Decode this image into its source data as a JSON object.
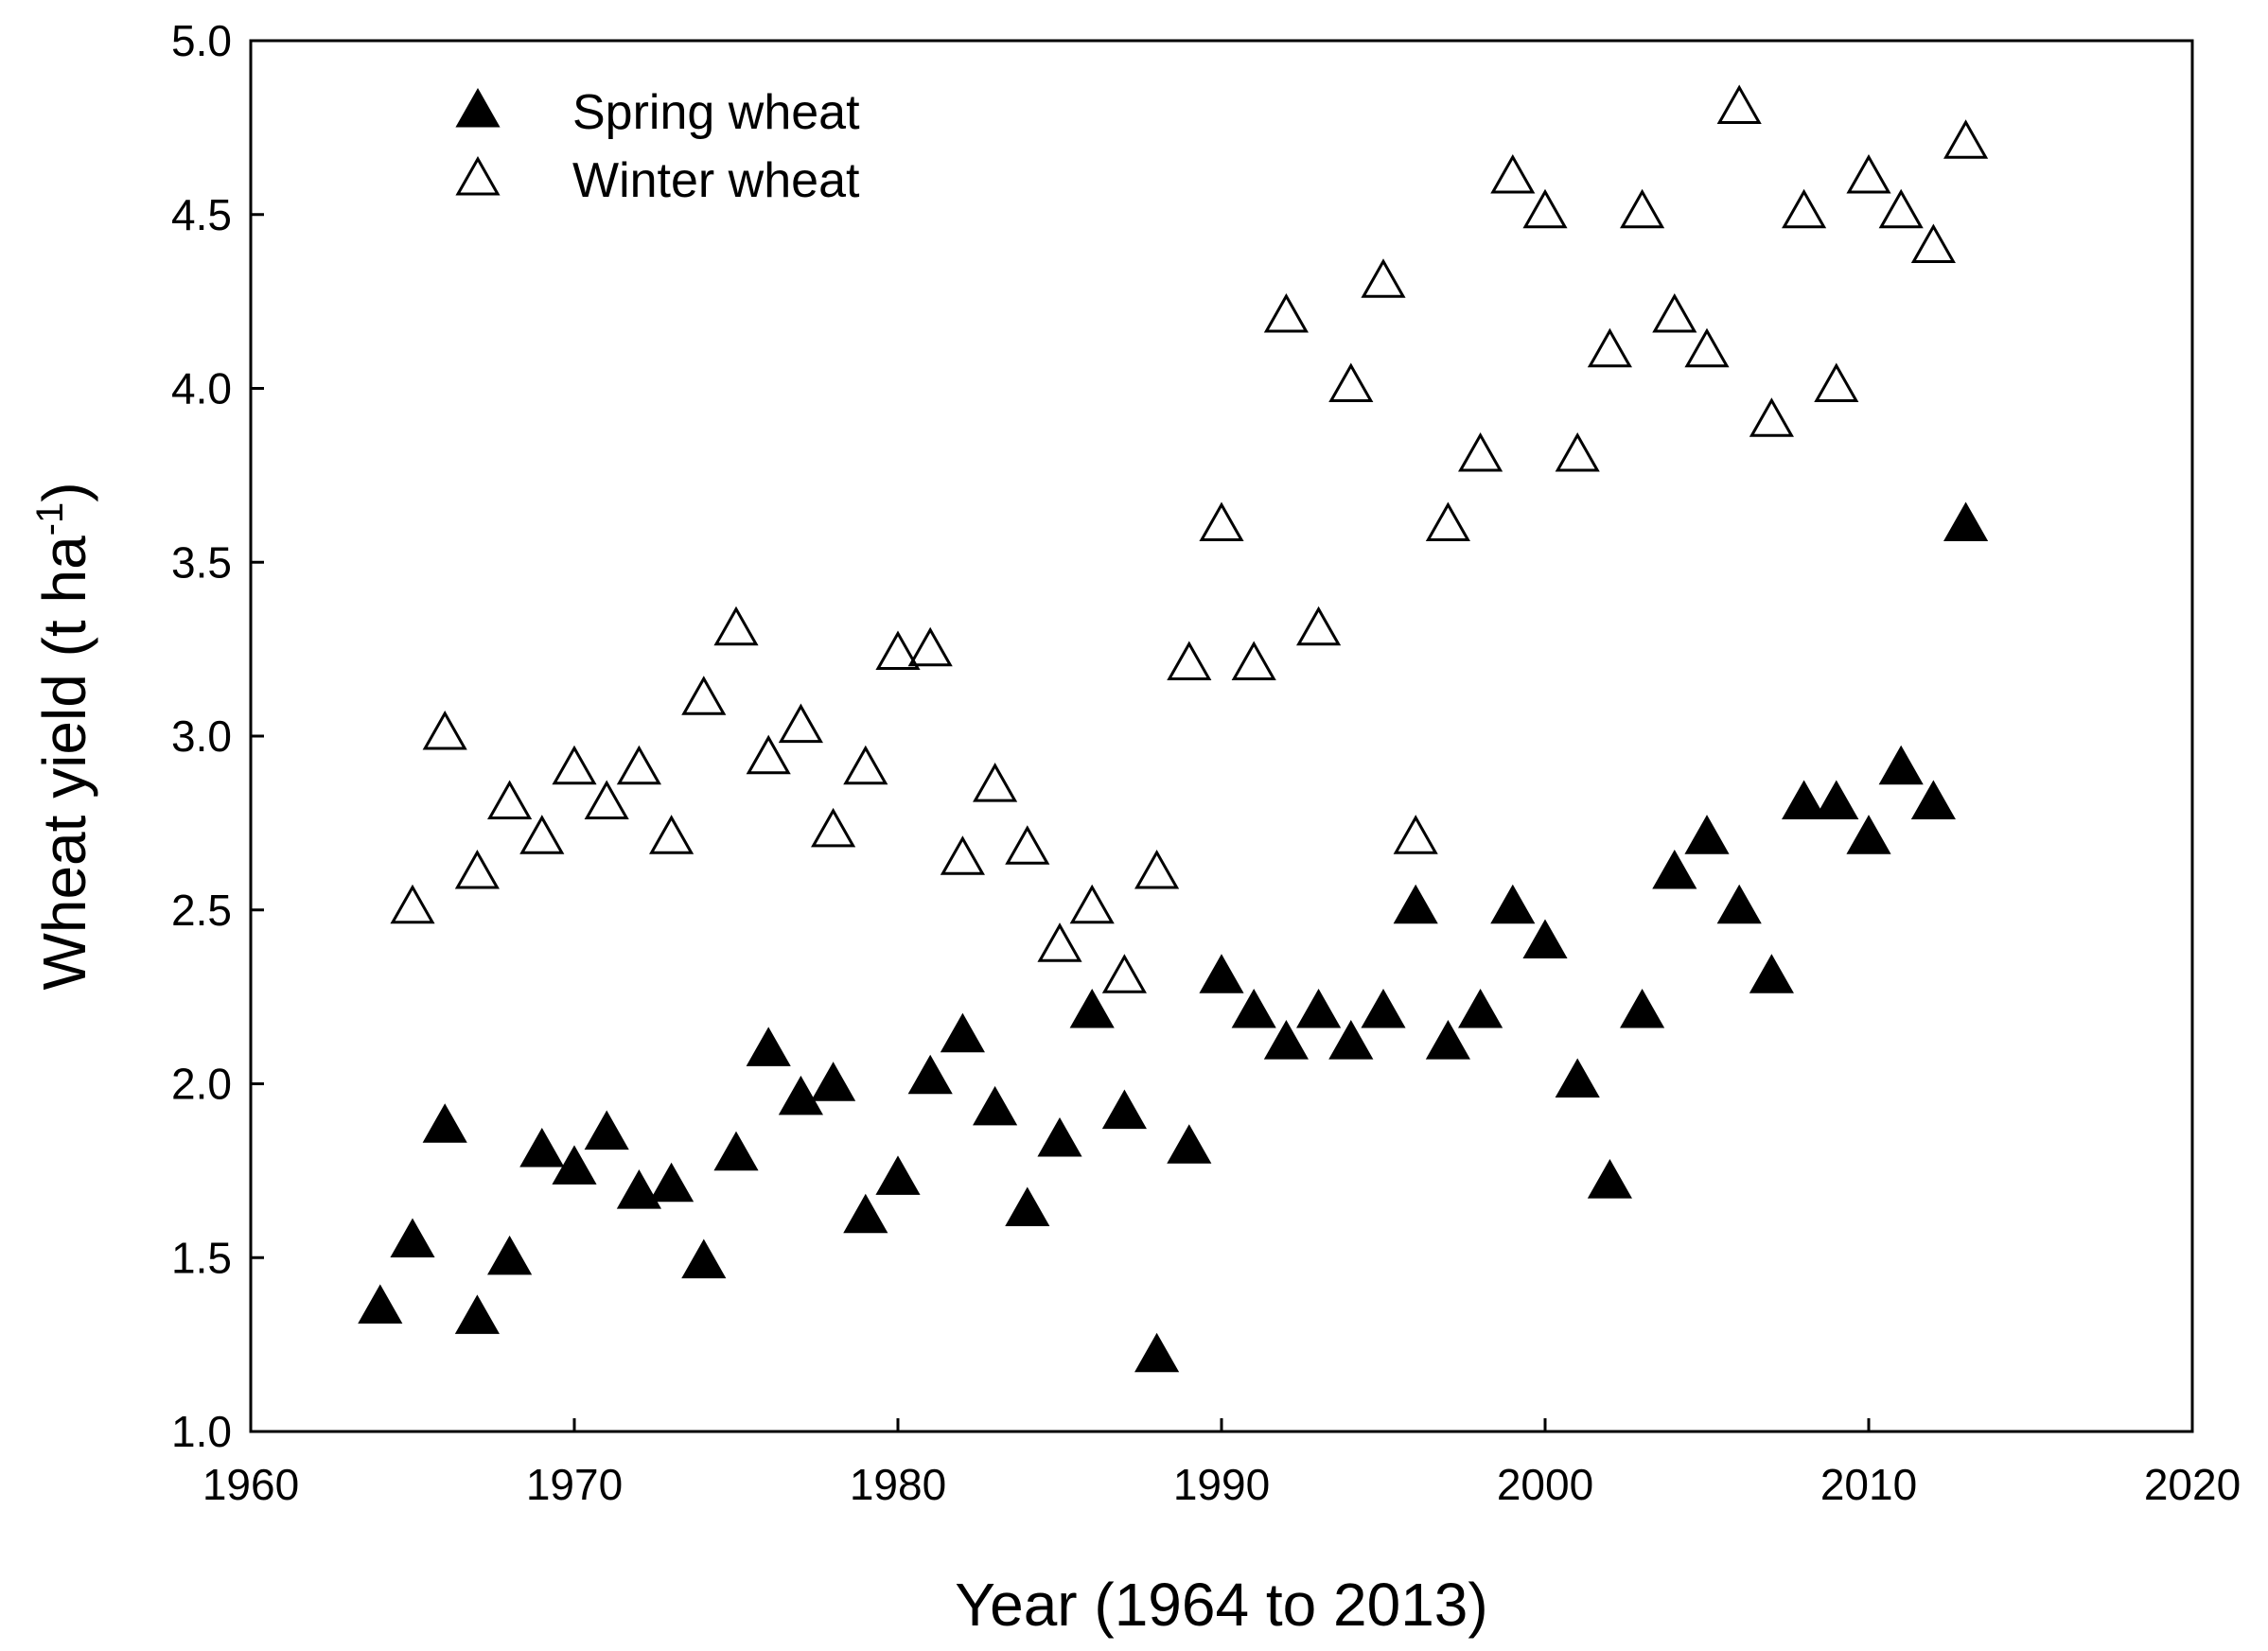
{
  "chart_data": {
    "type": "scatter",
    "title": "",
    "xlabel": "Year (1964 to 2013)",
    "ylabel_main": "Wheat yield (t ha",
    "ylabel_sup": "-1",
    "ylabel_close": ")",
    "xlim": [
      1960,
      2020
    ],
    "ylim": [
      1.0,
      5.0
    ],
    "xticks": [
      1960,
      1970,
      1980,
      1990,
      2000,
      2010,
      2020
    ],
    "yticks": [
      "1.0",
      "1.5",
      "2.0",
      "2.5",
      "3.0",
      "3.5",
      "4.0",
      "4.5",
      "5.0"
    ],
    "legend_position": "top-left",
    "series": [
      {
        "name": "Spring wheat",
        "marker": "filled-triangle",
        "color": "#000000",
        "points": [
          [
            1964,
            1.35
          ],
          [
            1965,
            1.54
          ],
          [
            1966,
            1.87
          ],
          [
            1967,
            1.32
          ],
          [
            1968,
            1.49
          ],
          [
            1969,
            1.8
          ],
          [
            1970,
            1.75
          ],
          [
            1971,
            1.85
          ],
          [
            1972,
            1.68
          ],
          [
            1973,
            1.7
          ],
          [
            1974,
            1.48
          ],
          [
            1975,
            1.79
          ],
          [
            1976,
            2.09
          ],
          [
            1977,
            1.95
          ],
          [
            1978,
            1.99
          ],
          [
            1979,
            1.61
          ],
          [
            1980,
            1.72
          ],
          [
            1981,
            2.01
          ],
          [
            1982,
            2.13
          ],
          [
            1983,
            1.92
          ],
          [
            1984,
            1.63
          ],
          [
            1985,
            1.83
          ],
          [
            1986,
            2.2
          ],
          [
            1987,
            1.91
          ],
          [
            1988,
            1.21
          ],
          [
            1989,
            1.81
          ],
          [
            1990,
            2.3
          ],
          [
            1991,
            2.2
          ],
          [
            1992,
            2.11
          ],
          [
            1993,
            2.2
          ],
          [
            1994,
            2.11
          ],
          [
            1995,
            2.2
          ],
          [
            1996,
            2.5
          ],
          [
            1997,
            2.11
          ],
          [
            1998,
            2.2
          ],
          [
            1999,
            2.5
          ],
          [
            2000,
            2.4
          ],
          [
            2001,
            2.0
          ],
          [
            2002,
            1.71
          ],
          [
            2003,
            2.2
          ],
          [
            2004,
            2.6
          ],
          [
            2005,
            2.7
          ],
          [
            2006,
            2.5
          ],
          [
            2007,
            2.3
          ],
          [
            2008,
            2.8
          ],
          [
            2009,
            2.8
          ],
          [
            2010,
            2.7
          ],
          [
            2011,
            2.9
          ],
          [
            2012,
            2.8
          ],
          [
            2013,
            3.6
          ]
        ]
      },
      {
        "name": "Winter wheat",
        "marker": "open-triangle",
        "color": "#000000",
        "points": [
          [
            1965,
            2.5
          ],
          [
            1966,
            3.0
          ],
          [
            1967,
            2.6
          ],
          [
            1968,
            2.8
          ],
          [
            1969,
            2.7
          ],
          [
            1970,
            2.9
          ],
          [
            1971,
            2.8
          ],
          [
            1972,
            2.9
          ],
          [
            1973,
            2.7
          ],
          [
            1974,
            3.1
          ],
          [
            1975,
            3.3
          ],
          [
            1976,
            2.93
          ],
          [
            1977,
            3.02
          ],
          [
            1978,
            2.72
          ],
          [
            1979,
            2.9
          ],
          [
            1980,
            3.23
          ],
          [
            1981,
            3.24
          ],
          [
            1982,
            2.64
          ],
          [
            1983,
            2.85
          ],
          [
            1984,
            2.67
          ],
          [
            1985,
            2.39
          ],
          [
            1986,
            2.5
          ],
          [
            1987,
            2.3
          ],
          [
            1988,
            2.6
          ],
          [
            1989,
            3.2
          ],
          [
            1990,
            3.6
          ],
          [
            1991,
            3.2
          ],
          [
            1992,
            4.2
          ],
          [
            1993,
            3.3
          ],
          [
            1994,
            4.0
          ],
          [
            1995,
            4.3
          ],
          [
            1996,
            2.7
          ],
          [
            1997,
            3.6
          ],
          [
            1998,
            3.8
          ],
          [
            1999,
            4.6
          ],
          [
            2000,
            4.5
          ],
          [
            2001,
            3.8
          ],
          [
            2002,
            4.1
          ],
          [
            2003,
            4.5
          ],
          [
            2004,
            4.2
          ],
          [
            2005,
            4.1
          ],
          [
            2006,
            4.8
          ],
          [
            2007,
            3.9
          ],
          [
            2008,
            4.5
          ],
          [
            2009,
            4.0
          ],
          [
            2010,
            4.6
          ],
          [
            2011,
            4.5
          ],
          [
            2012,
            4.4
          ],
          [
            2013,
            4.7
          ]
        ]
      }
    ]
  }
}
